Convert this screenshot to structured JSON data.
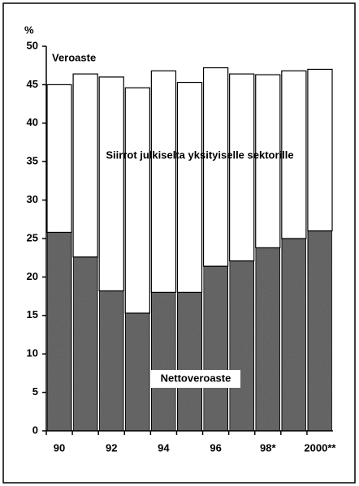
{
  "chart_data": {
    "type": "stacked_bar",
    "ylabel": "%",
    "annotation": "Veroaste",
    "categories": [
      "90",
      null,
      "92",
      null,
      "94",
      null,
      "96",
      null,
      "98*",
      null,
      "2000**"
    ],
    "series": [
      {
        "name": "Nettoveroaste",
        "color": "#6e6e6e",
        "values": [
          25.8,
          22.6,
          18.2,
          15.3,
          18.0,
          18.0,
          21.4,
          22.1,
          23.8,
          25.0,
          26.0
        ]
      },
      {
        "name": "Siirrot julkiselta yksityiselle sektorille",
        "color": "#ffffff",
        "values": [
          19.2,
          23.8,
          27.8,
          29.3,
          28.8,
          27.3,
          25.8,
          24.3,
          22.5,
          21.8,
          21.0
        ]
      }
    ],
    "ylim": [
      0,
      50
    ],
    "yticks": [
      0,
      5,
      10,
      15,
      20,
      25,
      30,
      35,
      40,
      45,
      50
    ]
  }
}
